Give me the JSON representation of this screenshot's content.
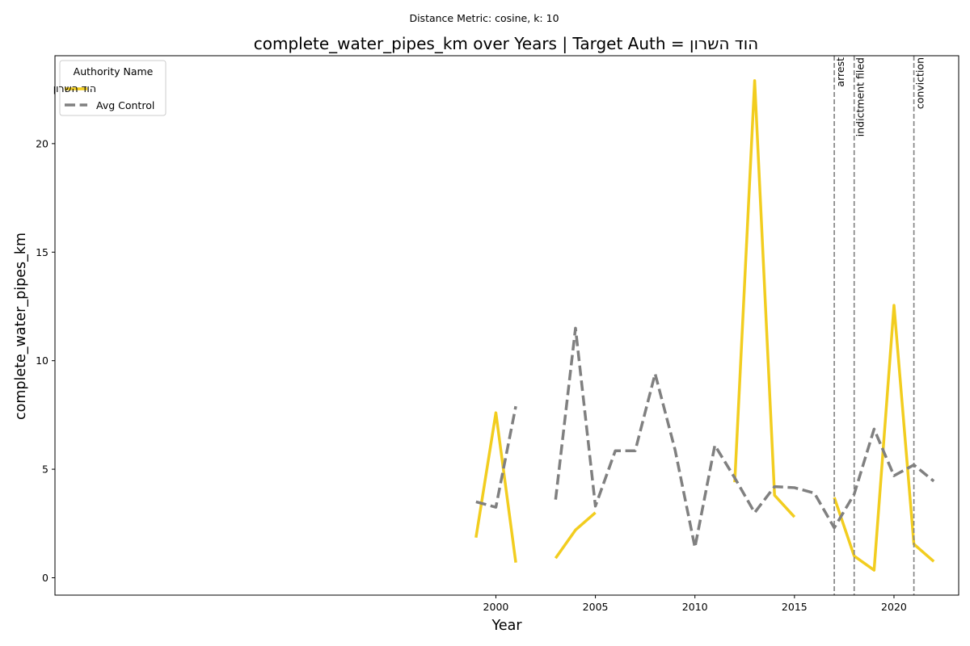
{
  "suptitle": "Distance Metric: cosine, k: 10",
  "chart_data": {
    "type": "line",
    "title": "complete_water_pipes_km over Years | Target Auth = הוד השרון",
    "xlabel": "Year",
    "ylabel": "complete_water_pipes_km",
    "xlim": [
      1977.85,
      2023.25
    ],
    "ylim": [
      -0.8,
      24.05
    ],
    "xticks": [
      2000,
      2005,
      2010,
      2015,
      2020
    ],
    "yticks": [
      0,
      5,
      10,
      15,
      20
    ],
    "grid": false,
    "legend": {
      "title": "Authority Name",
      "placement": "top-left"
    },
    "series": [
      {
        "name": "הוד השרון",
        "color": "#f2cd1f",
        "style": "solid",
        "points": [
          [
            1999,
            1.85
          ],
          [
            2000,
            7.6
          ],
          [
            2001,
            0.7
          ],
          [
            2002,
            null
          ],
          [
            2003,
            0.9
          ],
          [
            2004,
            2.2
          ],
          [
            2005,
            3.0
          ],
          [
            2006,
            null
          ],
          [
            2007,
            null
          ],
          [
            2008,
            null
          ],
          [
            2009,
            null
          ],
          [
            2010,
            null
          ],
          [
            2011,
            null
          ],
          [
            2012,
            4.4
          ],
          [
            2013,
            22.9
          ],
          [
            2014,
            3.8
          ],
          [
            2015,
            2.8
          ],
          [
            2016,
            null
          ],
          [
            2017,
            3.7
          ],
          [
            2018,
            1.0
          ],
          [
            2019,
            0.35
          ],
          [
            2020,
            12.55
          ],
          [
            2021,
            1.55
          ],
          [
            2022,
            0.75
          ]
        ]
      },
      {
        "name": "Avg Control",
        "color": "#808080",
        "style": "dashed",
        "points": [
          [
            1999,
            3.5
          ],
          [
            2000,
            3.25
          ],
          [
            2001,
            7.9
          ],
          [
            2002,
            null
          ],
          [
            2003,
            3.6
          ],
          [
            2004,
            11.5
          ],
          [
            2005,
            3.3
          ],
          [
            2006,
            5.85
          ],
          [
            2007,
            5.85
          ],
          [
            2008,
            9.4
          ],
          [
            2009,
            5.9
          ],
          [
            2010,
            1.4
          ],
          [
            2011,
            6.1
          ],
          [
            2012,
            4.6
          ],
          [
            2013,
            3.0
          ],
          [
            2014,
            4.2
          ],
          [
            2015,
            4.15
          ],
          [
            2016,
            3.9
          ],
          [
            2017,
            2.3
          ],
          [
            2018,
            3.85
          ],
          [
            2019,
            6.85
          ],
          [
            2020,
            4.7
          ],
          [
            2021,
            5.2
          ],
          [
            2022,
            4.45
          ]
        ]
      }
    ],
    "events": [
      {
        "x": 2017,
        "label": "arrest"
      },
      {
        "x": 2018,
        "label": "indictment filed"
      },
      {
        "x": 2021,
        "label": "conviction"
      }
    ]
  }
}
